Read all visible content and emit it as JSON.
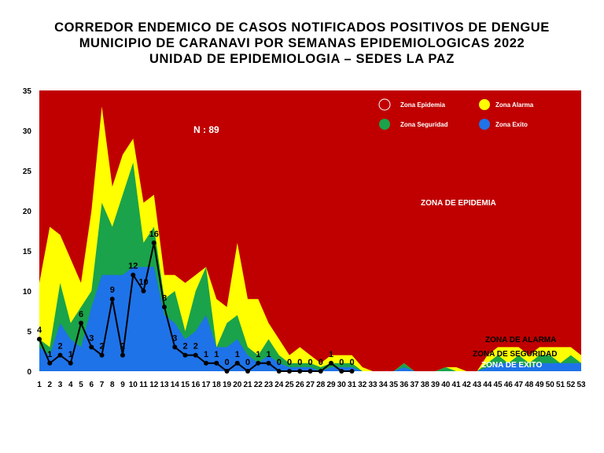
{
  "titles": {
    "line1": "CORREDOR ENDEMICO DE CASOS NOTIFICADOS POSITIVOS DE DENGUE",
    "line2": "MUNICIPIO DE CARANAVI POR SEMANAS EPIDEMIOLOGICAS 2022",
    "line3": "UNIDAD DE EPIDEMIOLOGIA – SEDES LA PAZ"
  },
  "colors": {
    "epidemia": "#c00000",
    "alarma": "#ffff00",
    "seguridad": "#1aa34a",
    "exito": "#1e73e8",
    "line": "#000000"
  },
  "chart_data": {
    "type": "area",
    "x": [
      1,
      2,
      3,
      4,
      5,
      6,
      7,
      8,
      9,
      10,
      11,
      12,
      13,
      14,
      15,
      16,
      17,
      18,
      19,
      20,
      21,
      22,
      23,
      24,
      25,
      26,
      27,
      28,
      29,
      30,
      31,
      32,
      33,
      34,
      35,
      36,
      37,
      38,
      39,
      40,
      41,
      42,
      43,
      44,
      45,
      46,
      47,
      48,
      49,
      50,
      51,
      52,
      53
    ],
    "ylim": [
      0,
      35
    ],
    "yticks": [
      0,
      5,
      10,
      15,
      20,
      25,
      30,
      35
    ],
    "annotation": "N : 89",
    "legend": {
      "epidemia": "Zona Epidemia",
      "alarma": "Zona Alarma",
      "seguridad": "Zona Seguridad",
      "exito": "Zona Exito"
    },
    "zone_labels": {
      "epidemia": "ZONA DE EPIDEMIA",
      "alarma": "ZONA DE ALARMA",
      "seguridad": "ZONA DE  SEGURIDAD",
      "exito": "ZONA DE  EXITO"
    },
    "series": [
      {
        "name": "Zona Alarma",
        "values": [
          11,
          18,
          17,
          14,
          11,
          20,
          33,
          23,
          27,
          29,
          21,
          22,
          12,
          12,
          11,
          12,
          13,
          9,
          8,
          16,
          9,
          9,
          6,
          4,
          2,
          3,
          2,
          1,
          2,
          2,
          2,
          0.5,
          0,
          0,
          0,
          1,
          0,
          0,
          0,
          0.5,
          0.5,
          0,
          0,
          2,
          3,
          3,
          3,
          2,
          3,
          3,
          3,
          3,
          2
        ]
      },
      {
        "name": "Zona Seguridad",
        "values": [
          4,
          3,
          11,
          6,
          8,
          10,
          21,
          18,
          22,
          26,
          16,
          18,
          9,
          10,
          5,
          10,
          13,
          3,
          6,
          7,
          3,
          2,
          4,
          2,
          1,
          1,
          1,
          0.5,
          1,
          1,
          1,
          0,
          0,
          0,
          0,
          1,
          0,
          0,
          0,
          0.5,
          0,
          0,
          0,
          1,
          2,
          1,
          2,
          1,
          2,
          2,
          1,
          2,
          1
        ]
      },
      {
        "name": "Zona Exito",
        "values": [
          3,
          2,
          6,
          4,
          3,
          8,
          12,
          12,
          12,
          13,
          13,
          13,
          7,
          6,
          4,
          5,
          7,
          3,
          3,
          4,
          2,
          1,
          2,
          1,
          0.5,
          0.5,
          0.5,
          0,
          0.5,
          0.5,
          0.5,
          0,
          0,
          0,
          0,
          0.5,
          0,
          0,
          0,
          0,
          0,
          0,
          0,
          0.5,
          1,
          1,
          1,
          0.5,
          1,
          1,
          1,
          1,
          1
        ]
      },
      {
        "name": "Casos",
        "x": [
          1,
          2,
          3,
          4,
          5,
          6,
          7,
          8,
          9,
          10,
          11,
          12,
          13,
          14,
          15,
          16,
          17,
          18,
          19,
          20,
          21,
          22,
          23,
          24,
          25,
          26,
          27,
          28,
          29,
          30,
          31
        ],
        "values": [
          4,
          1,
          2,
          1,
          6,
          3,
          2,
          9,
          2,
          12,
          10,
          16,
          8,
          3,
          2,
          2,
          1,
          1,
          0,
          1,
          0,
          1,
          1,
          0,
          0,
          0,
          0,
          0,
          1,
          0,
          0
        ]
      }
    ]
  }
}
